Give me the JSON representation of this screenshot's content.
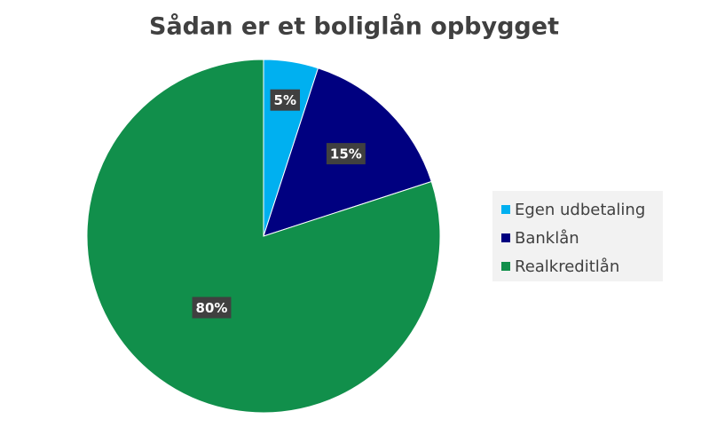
{
  "chart_data": {
    "type": "pie",
    "title": "Sådan er et boliglån opbygget",
    "categories": [
      "Egen udbetaling",
      "Banklån",
      "Realkreditlån"
    ],
    "values": [
      5,
      15,
      80
    ],
    "value_labels": [
      "5%",
      "15%",
      "80%"
    ],
    "colors": [
      "#00b0f0",
      "#000080",
      "#118f4b"
    ],
    "legend": "right"
  }
}
